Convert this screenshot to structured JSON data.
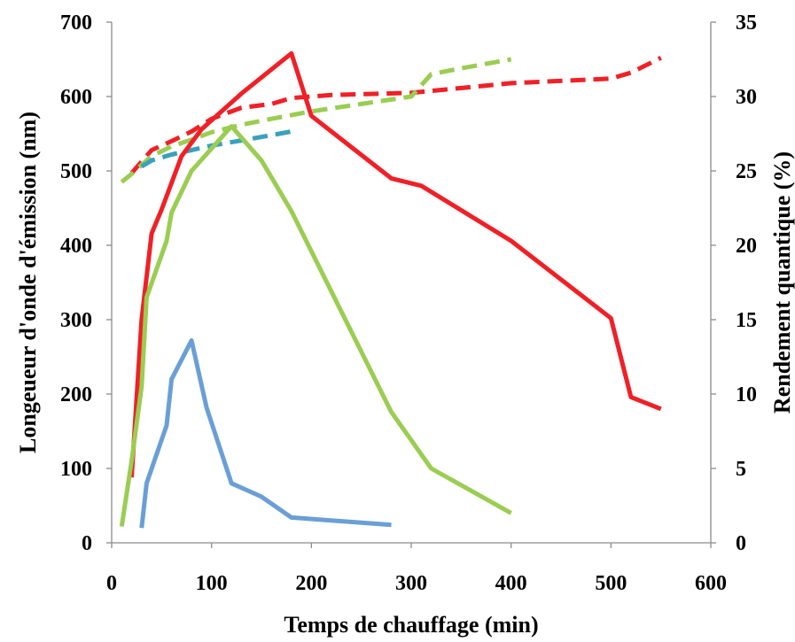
{
  "chart_data": {
    "type": "line",
    "title": "",
    "xlabel": "Temps de chauffage (min)",
    "ylabel_left": "Longeueur  d'onde d'émission (nm)",
    "ylabel_right": "Rendement quantique (%)",
    "xlim": [
      0,
      600
    ],
    "ylim_left": [
      0,
      700
    ],
    "ylim_right": [
      0,
      35
    ],
    "x_ticks": [
      "0",
      "100",
      "200",
      "300",
      "400",
      "500",
      "600"
    ],
    "y_left_ticks": [
      "0",
      "100",
      "200",
      "300",
      "400",
      "500",
      "600",
      "700"
    ],
    "y_right_ticks": [
      "0",
      "5",
      "10",
      "15",
      "20",
      "25",
      "30",
      "35"
    ],
    "grid": false,
    "legend": "none",
    "series": [
      {
        "axis": "left",
        "style": "dashed",
        "color": "#f02027",
        "x": [
          20,
          40,
          60,
          80,
          100,
          130,
          160,
          180,
          220,
          300,
          400,
          500,
          520,
          550
        ],
        "y": [
          497,
          528,
          540,
          553,
          570,
          585,
          590,
          598,
          602,
          605,
          618,
          624,
          632,
          652
        ]
      },
      {
        "axis": "left",
        "style": "dashed",
        "color": "#9acd51",
        "x": [
          10,
          20,
          40,
          60,
          80,
          100,
          130,
          160,
          180,
          200,
          250,
          300,
          320,
          350,
          400
        ],
        "y": [
          485,
          496,
          520,
          533,
          542,
          552,
          562,
          570,
          575,
          580,
          590,
          600,
          630,
          638,
          650
        ]
      },
      {
        "axis": "left",
        "style": "dashed",
        "color": "#3aa0bf",
        "x": [
          30,
          40,
          60,
          80,
          100,
          130,
          160,
          180
        ],
        "y": [
          506,
          514,
          522,
          528,
          534,
          541,
          548,
          553
        ]
      },
      {
        "axis": "right",
        "style": "solid",
        "color": "#f02027",
        "x": [
          20,
          30,
          40,
          50,
          70,
          90,
          130,
          180,
          200,
          280,
          310,
          400,
          500,
          520,
          550
        ],
        "y": [
          4.4,
          15.0,
          20.8,
          22.4,
          26.0,
          27.8,
          30.2,
          32.9,
          28.7,
          24.5,
          24.0,
          20.3,
          15.1,
          9.8,
          9.0
        ]
      },
      {
        "axis": "right",
        "style": "solid",
        "color": "#9acd51",
        "x": [
          10,
          20,
          30,
          35,
          55,
          60,
          80,
          120,
          150,
          180,
          280,
          320,
          400
        ],
        "y": [
          1.1,
          5.5,
          10.5,
          16.5,
          20.3,
          22.2,
          25.0,
          28.0,
          25.7,
          22.3,
          8.8,
          5.0,
          2.0
        ]
      },
      {
        "axis": "right",
        "style": "solid",
        "color": "#6a9fd6",
        "x": [
          30,
          35,
          55,
          60,
          80,
          95,
          120,
          150,
          180,
          280
        ],
        "y": [
          1.0,
          4.0,
          7.9,
          11.0,
          13.6,
          9.1,
          4.0,
          3.1,
          1.7,
          1.2
        ]
      }
    ]
  }
}
